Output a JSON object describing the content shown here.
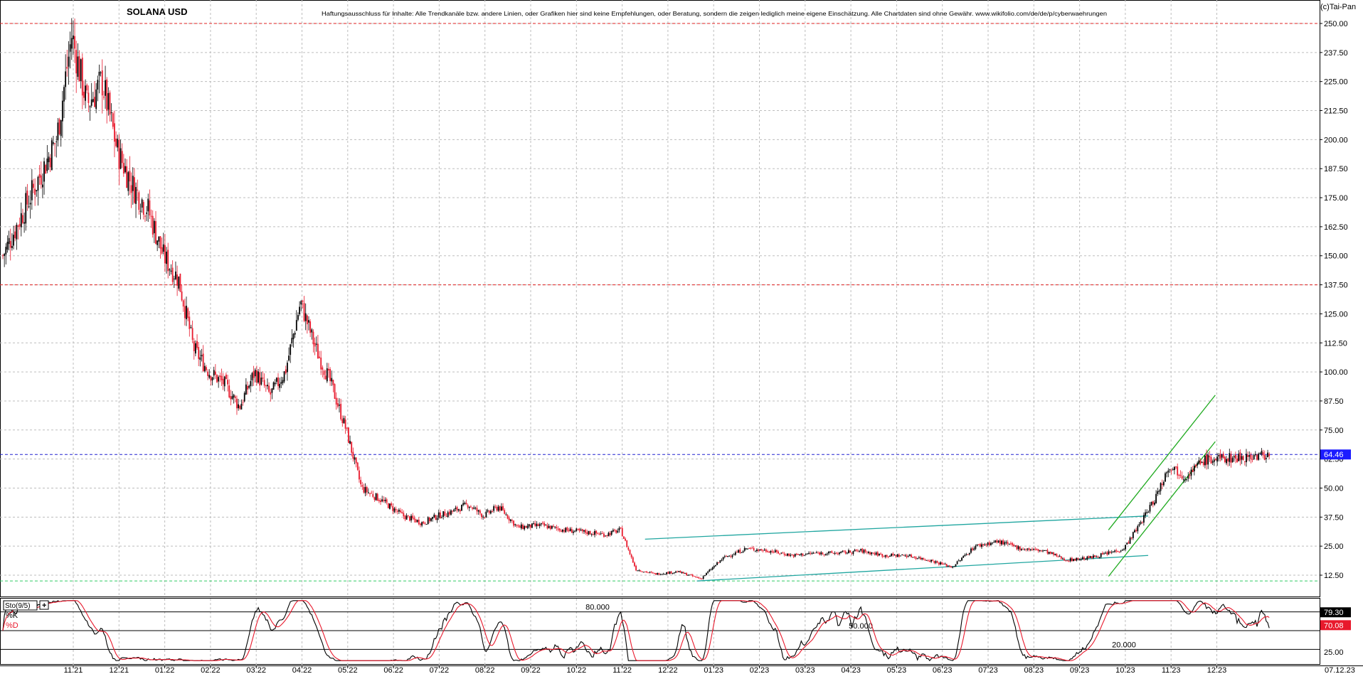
{
  "header": {
    "symbol": "SOLANA USD",
    "disclaimer": "Haftungsausschluss für Inhalte: Alle Trendkanäle bzw. andere Linien, oder Grafiken hier sind keine Empfehlungen, oder Beratung, sondern die zeigen lediglich meine eigene Einschätzung. Alle Chartdaten sind ohne Gewähr. www.wikifolio.com/de/de/p/cyberwaehrungen",
    "copyright": "(c)Tai-Pan"
  },
  "colors": {
    "up": "#000000",
    "down": "#e8192c",
    "grid": "#bdbdbd",
    "resistance": "#e02020",
    "last_price_line": "#2020d0",
    "support": "#33cc66",
    "channel_teal": "#20a6a0",
    "channel_green": "#1faa1f",
    "stoch_k": "#000000",
    "stoch_d": "#e8192c",
    "price_badge_bg": "#1c1cff",
    "k_badge_bg": "#000000",
    "d_badge_bg": "#e8192c"
  },
  "chart_data": [
    {
      "type": "candlestick",
      "title": "SOLANA USD",
      "xlabel": "",
      "ylabel": "",
      "ylim": [
        2,
        253
      ],
      "y_ticks": [
        250.0,
        237.5,
        225.0,
        212.5,
        200.0,
        187.5,
        175.0,
        162.5,
        150.0,
        137.5,
        125.0,
        112.5,
        100.0,
        87.5,
        75.0,
        62.5,
        50.0,
        37.5,
        25.0,
        12.5
      ],
      "y_tick_labels": [
        "250.00",
        "237.50",
        "225.00",
        "212.50",
        "200.00",
        "187.50",
        "175.00",
        "162.50",
        "150.00",
        "137.50",
        "125.00",
        "112.50",
        "100.00",
        "87.50",
        "75.00",
        "62.50",
        "50.00",
        "37.50",
        "25.00",
        "12.50"
      ],
      "x_tick_labels": [
        "11.21",
        "12.21",
        "01.22",
        "02.22",
        "03.22",
        "04.22",
        "05.22",
        "06.22",
        "07.22",
        "08.22",
        "09.22",
        "10.22",
        "11.22",
        "12.22",
        "01.23",
        "02.23",
        "03.23",
        "04.23",
        "05.23",
        "06.23",
        "07.23",
        "08.23",
        "09.23",
        "10.23",
        "11.23",
        "12.23"
      ],
      "last_date_label": "07.12.23",
      "last_price": 64.46,
      "last_price_label": "64.46",
      "grid": true,
      "close_path": [
        [
          "10.2021",
          150
        ],
        [
          "11.2021",
          200
        ],
        [
          "11.2021",
          245
        ],
        [
          "11.2021",
          215
        ],
        [
          "12.2021",
          225
        ],
        [
          "12.2021",
          195
        ],
        [
          "12.2021",
          180
        ],
        [
          "01.2022",
          170
        ],
        [
          "01.2022",
          150
        ],
        [
          "01.2022",
          140
        ],
        [
          "02.2022",
          110
        ],
        [
          "02.2022",
          100
        ],
        [
          "02.2022",
          95
        ],
        [
          "03.2022",
          85
        ],
        [
          "03.2022",
          100
        ],
        [
          "03.2022",
          90
        ],
        [
          "04.2022",
          100
        ],
        [
          "04.2022",
          130
        ],
        [
          "04.2022",
          110
        ],
        [
          "05.2022",
          95
        ],
        [
          "05.2022",
          75
        ],
        [
          "05.2022",
          50
        ],
        [
          "06.2022",
          45
        ],
        [
          "06.2022",
          38
        ],
        [
          "07.2022",
          35
        ],
        [
          "07.2022",
          38
        ],
        [
          "07.2022",
          40
        ],
        [
          "08.2022",
          43
        ],
        [
          "08.2022",
          38
        ],
        [
          "08.2022",
          42
        ],
        [
          "09.2022",
          33
        ],
        [
          "09.2022",
          34
        ],
        [
          "10.2022",
          32
        ],
        [
          "10.2022",
          31
        ],
        [
          "11.2022",
          30
        ],
        [
          "11.2022",
          32
        ],
        [
          "11.2022",
          15
        ],
        [
          "12.2022",
          13
        ],
        [
          "12.2022",
          14
        ],
        [
          "01.2023",
          11
        ],
        [
          "01.2023",
          20
        ],
        [
          "02.2023",
          24
        ],
        [
          "02.2023",
          23
        ],
        [
          "03.2023",
          21
        ],
        [
          "03.2023",
          22
        ],
        [
          "04.2023",
          22
        ],
        [
          "04.2023",
          23
        ],
        [
          "05.2023",
          21
        ],
        [
          "05.2023",
          21
        ],
        [
          "06.2023",
          19
        ],
        [
          "06.2023",
          16
        ],
        [
          "07.2023",
          25
        ],
        [
          "07.2023",
          27
        ],
        [
          "08.2023",
          24
        ],
        [
          "08.2023",
          23
        ],
        [
          "09.2023",
          19
        ],
        [
          "09.2023",
          20
        ],
        [
          "10.2023",
          22
        ],
        [
          "10.2023",
          24
        ],
        [
          "10.2023",
          34
        ],
        [
          "11.2023",
          45
        ],
        [
          "11.2023",
          60
        ],
        [
          "11.2023",
          55
        ],
        [
          "12.2023",
          62
        ],
        [
          "12.2023",
          64.46
        ]
      ],
      "annotations": {
        "resistance_levels": [
          250.0,
          137.5
        ],
        "last_price_line": 64.46,
        "support_level": 10.0,
        "teal_channel": {
          "upper": [
            [
              "01.12.2022",
              28
            ],
            [
              "01.11.2023",
              38
            ]
          ],
          "lower": [
            [
              "05.01.2023",
              10
            ],
            [
              "01.11.2023",
              21
            ]
          ]
        },
        "green_channel": {
          "upper": [
            [
              "05.10.2023",
              32
            ],
            [
              "15.12.2023",
              90
            ]
          ],
          "lower": [
            [
              "05.10.2023",
              12
            ],
            [
              "15.12.2023",
              70
            ]
          ]
        }
      }
    },
    {
      "type": "line",
      "title": "Sto(9/5)",
      "ylim": [
        0,
        100
      ],
      "y_tick_labels": [
        "25.00"
      ],
      "reference_lines": [
        {
          "value": 80,
          "label": "80.000"
        },
        {
          "value": 50,
          "label": "50.000"
        },
        {
          "value": 20,
          "label": "20.000"
        }
      ],
      "series": [
        {
          "name": "%K",
          "last": 79.3,
          "last_label": "79.30"
        },
        {
          "name": "%D",
          "last": 70.08,
          "last_label": "70.08"
        }
      ]
    }
  ]
}
